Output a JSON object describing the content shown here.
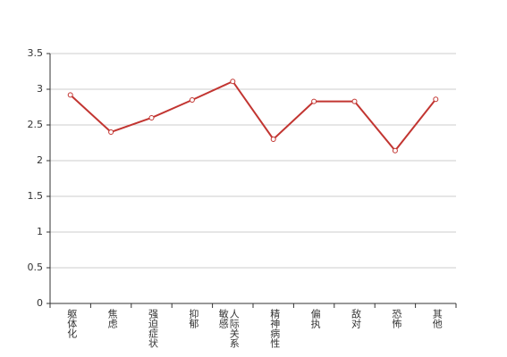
{
  "chart_data": {
    "type": "line",
    "categories": [
      "躯体化",
      "焦虑",
      "强迫症状",
      "抑郁",
      "人际关系敏感",
      "精神病性",
      "偏执",
      "敌对",
      "恐怖",
      "其他"
    ],
    "values": [
      2.92,
      2.4,
      2.6,
      2.85,
      3.11,
      2.3,
      2.83,
      2.83,
      2.14,
      2.86
    ],
    "color": "#c23531",
    "ylim": [
      0,
      3.5
    ],
    "yticks": [
      0,
      0.5,
      1,
      1.5,
      2,
      2.5,
      3,
      3.5
    ],
    "grid": true
  }
}
